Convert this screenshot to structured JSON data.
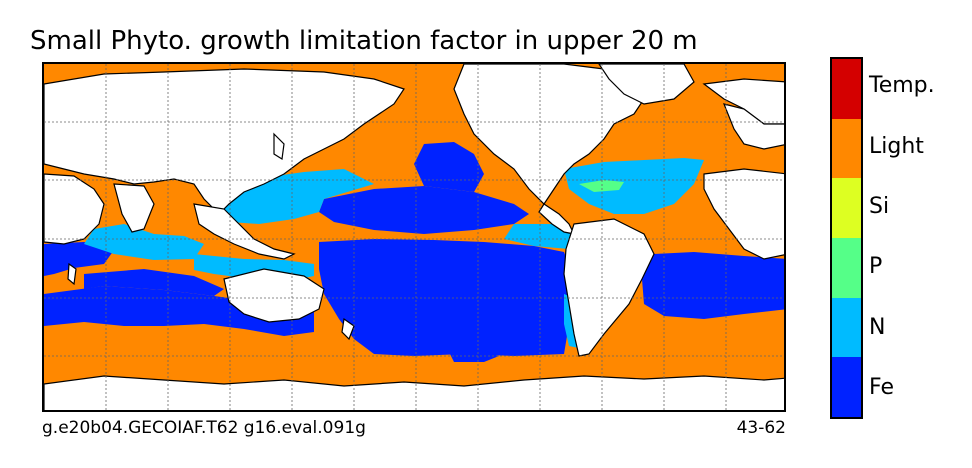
{
  "title": "Small Phyto. growth limitation factor in upper 20 m",
  "footer": {
    "left": "g.e20b04.GECOIAF.T62 g16.eval.091g",
    "right": "43-62"
  },
  "legend": {
    "items": [
      {
        "label": "Temp.",
        "color": "#d40000"
      },
      {
        "label": "Light",
        "color": "#ff8800"
      },
      {
        "label": "Si",
        "color": "#ddff22"
      },
      {
        "label": "P",
        "color": "#55ff88"
      },
      {
        "label": "N",
        "color": "#00bbff"
      },
      {
        "label": "Fe",
        "color": "#0022ff"
      }
    ]
  },
  "colors": {
    "land": "#ffffff",
    "coast": "#000000",
    "gridline": "#666666"
  }
}
